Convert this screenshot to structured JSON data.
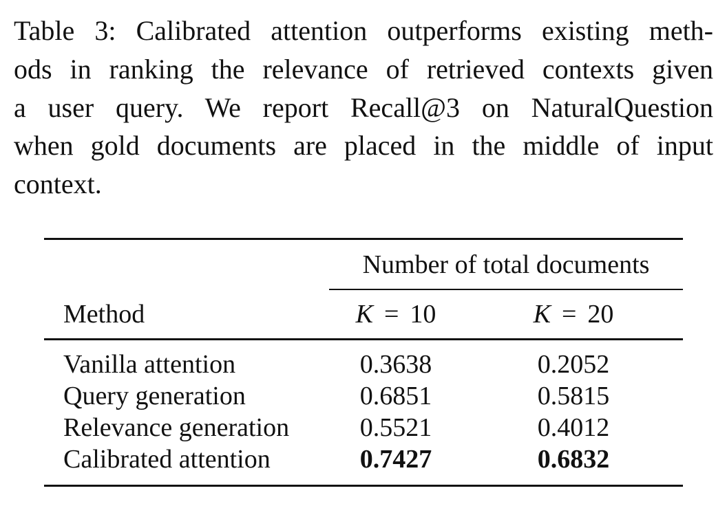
{
  "caption": {
    "lines": [
      "Table 3: Calibrated attention outperforms existing meth-",
      "ods in ranking the relevance of retrieved contexts given",
      "a user query. We report Recall@3 on NaturalQuestion",
      "when gold documents are placed in the middle of input",
      "context."
    ]
  },
  "table": {
    "group_header": "Number of total documents",
    "method_header": "Method",
    "columns": [
      {
        "symbol": "K",
        "relation": "=",
        "value": 10
      },
      {
        "symbol": "K",
        "relation": "=",
        "value": 20
      }
    ],
    "rows": [
      {
        "method": "Vanilla attention",
        "values": [
          "0.3638",
          "0.2052"
        ],
        "bold": false
      },
      {
        "method": "Query generation",
        "values": [
          "0.6851",
          "0.5815"
        ],
        "bold": false
      },
      {
        "method": "Relevance generation",
        "values": [
          "0.5521",
          "0.4012"
        ],
        "bold": false
      },
      {
        "method": "Calibrated attention",
        "values": [
          "0.7427",
          "0.6832"
        ],
        "bold": true
      }
    ]
  }
}
